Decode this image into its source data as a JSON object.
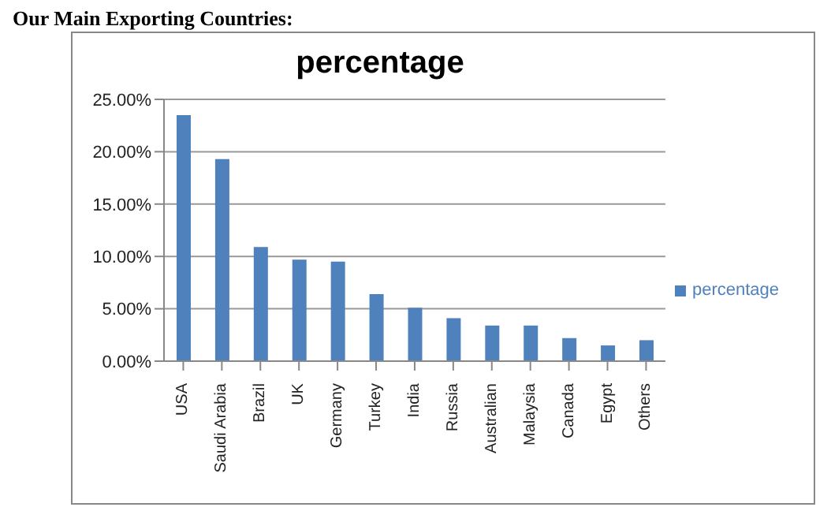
{
  "chart_data": {
    "type": "bar",
    "title": "percentage",
    "annotations": [
      "Our Main Exporting Countries:"
    ],
    "categories": [
      "USA",
      "Saudi Arabia",
      "Brazil",
      "UK",
      "Germany",
      "Turkey",
      "India",
      "Russia",
      "Australian",
      "Malaysia",
      "Canada",
      "Egypt",
      "Others"
    ],
    "series": [
      {
        "name": "percentage",
        "color": "#4f81bd",
        "values": [
          23.5,
          19.3,
          10.9,
          9.7,
          9.5,
          6.4,
          5.1,
          4.1,
          3.4,
          3.4,
          2.2,
          1.5,
          2.0
        ]
      }
    ],
    "ylim": [
      0,
      25
    ],
    "yticks": [
      {
        "value": 0,
        "label": "0.00%"
      },
      {
        "value": 5,
        "label": "5.00%"
      },
      {
        "value": 10,
        "label": "10.00%"
      },
      {
        "value": 15,
        "label": "15.00%"
      },
      {
        "value": 20,
        "label": "20.00%"
      },
      {
        "value": 25,
        "label": "25.00%"
      }
    ],
    "grid": "y",
    "legend": "right"
  }
}
